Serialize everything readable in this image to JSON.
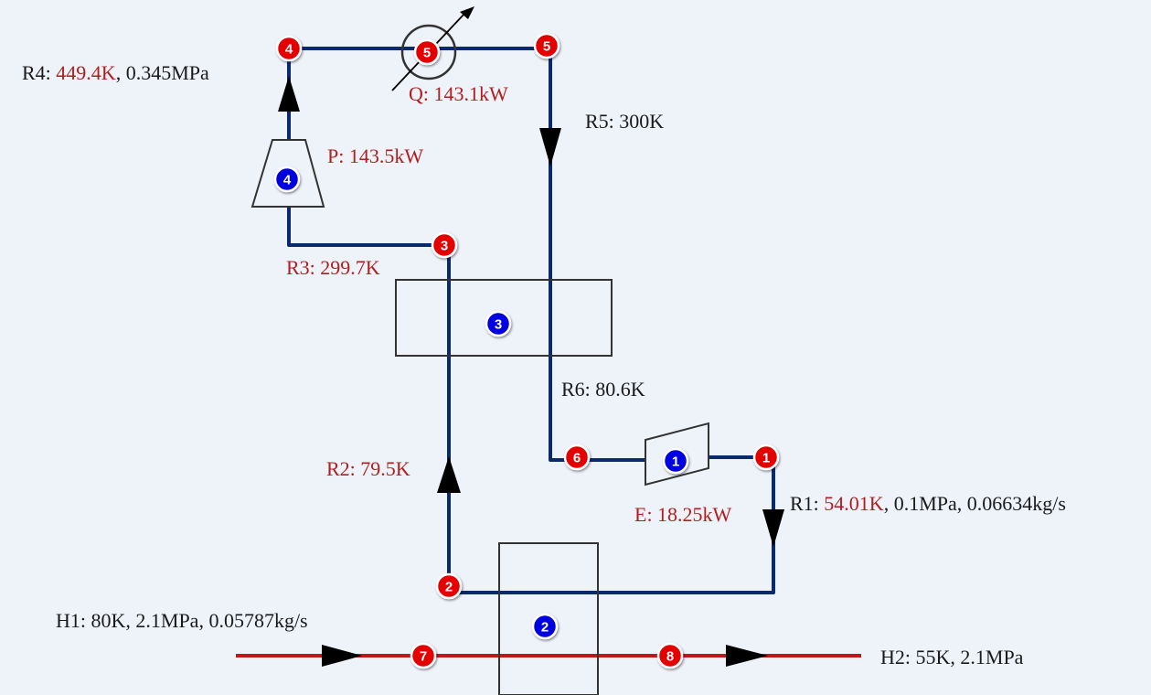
{
  "colors": {
    "refrigerant_line": "#0b2a6b",
    "hydrogen_line": "#c0161e",
    "stream_node": "#e50000",
    "equipment_node": "#0000e0",
    "label_black": "#1a1a1a",
    "label_red": "#b21e1e",
    "background": "#eef2f9"
  },
  "nodes": {
    "n1": "1",
    "n2": "2",
    "n3": "3",
    "n4": "4",
    "n5a": "5",
    "n5b": "5",
    "n6": "6",
    "n7": "7",
    "n8": "8",
    "e1": "1",
    "e2": "2",
    "e3": "3",
    "e4": "4"
  },
  "labels": {
    "r4_prefix": "R4: ",
    "r4_temp": "449.4K",
    "r4_rest": ", 0.345MPa",
    "q": "Q: 143.1kW",
    "r5": "R5: 300K",
    "p": "P: 143.5kW",
    "r3": "R3: 299.7K",
    "r6": "R6: 80.6K",
    "r2": "R2: 79.5K",
    "e": "E: 18.25kW",
    "r1_prefix": "R1: ",
    "r1_temp": "54.01K",
    "r1_rest": ", 0.1MPa, 0.06634kg/s",
    "h1": "H1: 80K, 2.1MPa, 0.05787kg/s",
    "h2": "H2: 55K, 2.1MPa"
  }
}
